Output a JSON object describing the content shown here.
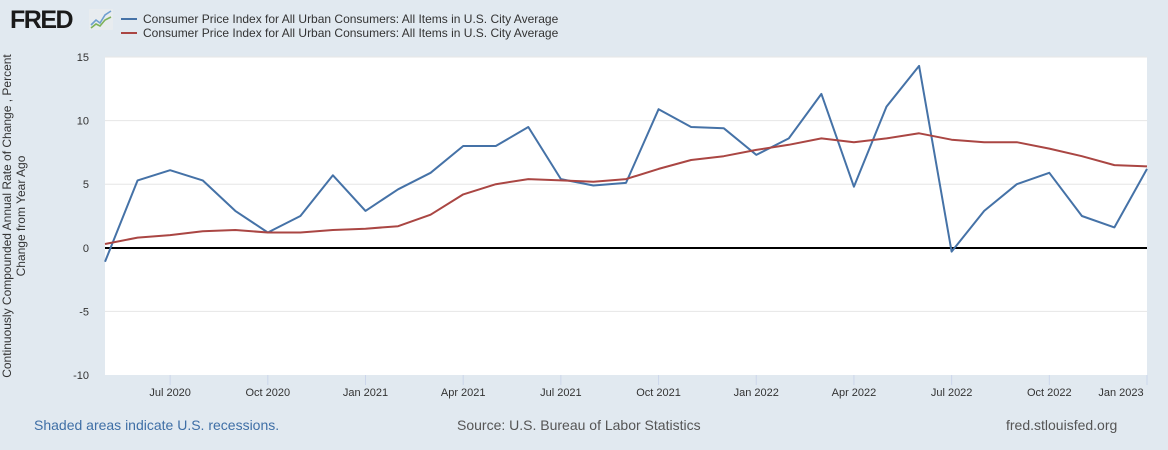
{
  "header": {
    "logo_text": "FRED",
    "logo_icon": "line-chart-icon"
  },
  "legend": [
    {
      "label": "Consumer Price Index for All Urban Consumers: All Items in U.S. City Average",
      "color": "#4572a7"
    },
    {
      "label": "Consumer Price Index for All Urban Consumers: All Items in U.S. City Average",
      "color": "#aa4643"
    }
  ],
  "axes": {
    "ylabel_line1": "Continuously Compounded Annual Rate of Change , Percent",
    "ylabel_line2": "Change from Year Ago"
  },
  "footer": {
    "recessions_note": "Shaded areas indicate U.S. recessions.",
    "source": "Source: U.S. Bureau of Labor Statistics",
    "site": "fred.stlouisfed.org"
  },
  "chart_data": {
    "type": "line",
    "title": "",
    "xlabel": "",
    "ylabel": "Continuously Compounded Annual Rate of Change , Percent Change from Year Ago",
    "ylim": [
      -10,
      15
    ],
    "yticks": [
      -10,
      -5,
      0,
      5,
      10,
      15
    ],
    "xticks": [
      "Jul 2020",
      "Oct 2020",
      "Jan 2021",
      "Apr 2021",
      "Jul 2021",
      "Oct 2021",
      "Jan 2022",
      "Apr 2022",
      "Jul 2022",
      "Oct 2022",
      "Jan 2023"
    ],
    "grid": true,
    "legend_position": "top",
    "x": [
      "2020-05",
      "2020-06",
      "2020-07",
      "2020-08",
      "2020-09",
      "2020-10",
      "2020-11",
      "2020-12",
      "2021-01",
      "2021-02",
      "2021-03",
      "2021-04",
      "2021-05",
      "2021-06",
      "2021-07",
      "2021-08",
      "2021-09",
      "2021-10",
      "2021-11",
      "2021-12",
      "2022-01",
      "2022-02",
      "2022-03",
      "2022-04",
      "2022-05",
      "2022-06",
      "2022-07",
      "2022-08",
      "2022-09",
      "2022-10",
      "2022-11",
      "2022-12",
      "2023-01"
    ],
    "series": [
      {
        "name": "Consumer Price Index for All Urban Consumers: All Items in U.S. City Average (Continuously Compounded Annual Rate of Change)",
        "color": "#4572a7",
        "values": [
          -1.1,
          5.3,
          6.1,
          5.3,
          2.9,
          1.2,
          2.5,
          5.7,
          2.9,
          4.6,
          5.9,
          8.0,
          8.0,
          9.5,
          5.4,
          4.9,
          5.1,
          10.9,
          9.5,
          9.4,
          7.3,
          8.6,
          12.1,
          4.8,
          11.1,
          14.3,
          -0.3,
          2.9,
          5.0,
          5.9,
          2.5,
          1.6,
          6.2
        ]
      },
      {
        "name": "Consumer Price Index for All Urban Consumers: All Items in U.S. City Average (Percent Change from Year Ago)",
        "color": "#aa4643",
        "values": [
          0.3,
          0.8,
          1.0,
          1.3,
          1.4,
          1.2,
          1.2,
          1.4,
          1.5,
          1.7,
          2.6,
          4.2,
          5.0,
          5.4,
          5.3,
          5.2,
          5.4,
          6.2,
          6.9,
          7.2,
          7.7,
          8.1,
          8.6,
          8.3,
          8.6,
          9.0,
          8.5,
          8.3,
          8.3,
          7.8,
          7.2,
          6.5,
          6.4
        ]
      }
    ]
  }
}
